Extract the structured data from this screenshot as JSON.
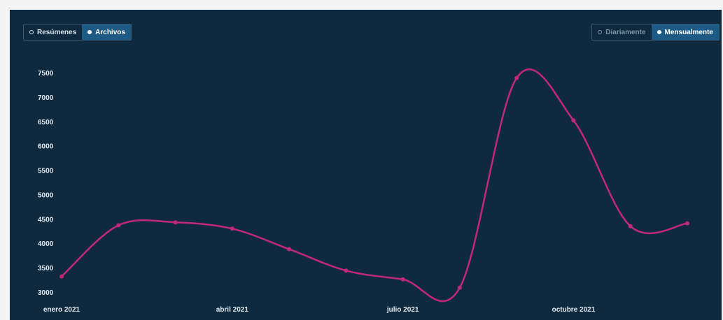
{
  "controls": {
    "view_toggle": [
      {
        "label": "Resúmenes",
        "active": false
      },
      {
        "label": "Archivos",
        "active": true
      }
    ],
    "period_toggle": [
      {
        "label": "Diariamente",
        "active": false
      },
      {
        "label": "Mensualmente",
        "active": true
      }
    ]
  },
  "colors": {
    "background": "#0f2a3f",
    "line": "#c2287a",
    "active_toggle": "#1d5b86"
  },
  "chart_data": {
    "type": "line",
    "title": "",
    "xlabel": "",
    "ylabel": "",
    "x": [
      "2021-01",
      "2021-02",
      "2021-03",
      "2021-04",
      "2021-05",
      "2021-06",
      "2021-07",
      "2021-08",
      "2021-09",
      "2021-10",
      "2021-11",
      "2021-12"
    ],
    "x_tick_labels": [
      {
        "x": "2021-01",
        "label": "enero 2021"
      },
      {
        "x": "2021-04",
        "label": "abril 2021"
      },
      {
        "x": "2021-07",
        "label": "julio 2021"
      },
      {
        "x": "2021-10",
        "label": "octubre 2021"
      }
    ],
    "series": [
      {
        "values": [
          3320,
          4370,
          4430,
          4300,
          3880,
          3440,
          3260,
          3090,
          7390,
          6520,
          4350,
          4410
        ]
      }
    ],
    "ylim": [
      3000,
      7500
    ],
    "y_ticks": [
      3000,
      3500,
      4000,
      4500,
      5000,
      5500,
      6000,
      6500,
      7000,
      7500
    ],
    "grid": false,
    "legend": "none",
    "smooth": true
  }
}
